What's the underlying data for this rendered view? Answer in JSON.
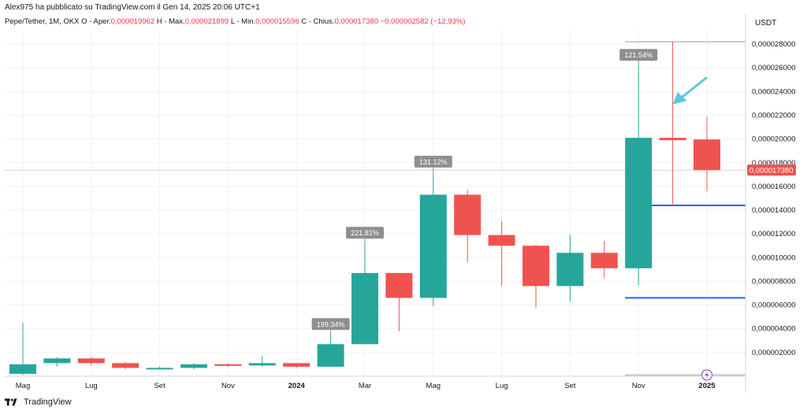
{
  "header": {
    "author_line": "Alex975 ha pubblicato su TradingView.com il Gen 14, 2025 20:06 UTC+1",
    "symbol": "Pepe/Tether, 1M, OKX",
    "open_label": "O - Aper.",
    "open_value": "0,000019962",
    "high_label": "H - Max.",
    "high_value": "0,000021899",
    "low_label": "L - Min.",
    "low_value": "0,000015596",
    "close_label": "C - Chius.",
    "close_value": "0,000017380",
    "change_value": "−0,000002582 (−12,93%)"
  },
  "footer": {
    "brand": "TradingView",
    "logo_icon": "tradingview-logo-icon"
  },
  "colors": {
    "up": "#26a69a",
    "down": "#ef5350",
    "level": "#2962ff",
    "arrow": "#5bc8e0",
    "label_bg": "#8f8f8f"
  },
  "chart_data": {
    "type": "candlestick",
    "currency_label": "USDT",
    "last_price_label": "0,000017380",
    "last_price": 1.738e-05,
    "ylim": [
      0,
      2.92e-05
    ],
    "y_ticks": [
      {
        "v": 2e-06,
        "label": "0,000002000"
      },
      {
        "v": 4e-06,
        "label": "0,000004000"
      },
      {
        "v": 6e-06,
        "label": "0,000006000"
      },
      {
        "v": 8e-06,
        "label": "0,000008000"
      },
      {
        "v": 1e-05,
        "label": "0,000010000"
      },
      {
        "v": 1.2e-05,
        "label": "0,000012000"
      },
      {
        "v": 1.4e-05,
        "label": "0,000014000"
      },
      {
        "v": 1.6e-05,
        "label": "0,000016000"
      },
      {
        "v": 1.8e-05,
        "label": "0,000018000"
      },
      {
        "v": 2e-05,
        "label": "0,000020000"
      },
      {
        "v": 2.2e-05,
        "label": "0,000022000"
      },
      {
        "v": 2.4e-05,
        "label": "0,000024000"
      },
      {
        "v": 2.6e-05,
        "label": "0,000026000"
      },
      {
        "v": 2.8e-05,
        "label": "0,000028000"
      }
    ],
    "x_labels": [
      {
        "i": 0,
        "label": "Mag",
        "bold": false
      },
      {
        "i": 2,
        "label": "Lug",
        "bold": false
      },
      {
        "i": 4,
        "label": "Set",
        "bold": false
      },
      {
        "i": 6,
        "label": "Nov",
        "bold": false
      },
      {
        "i": 8,
        "label": "2024",
        "bold": true
      },
      {
        "i": 10,
        "label": "Mar",
        "bold": false
      },
      {
        "i": 12,
        "label": "Mag",
        "bold": false
      },
      {
        "i": 14,
        "label": "Lug",
        "bold": false
      },
      {
        "i": 16,
        "label": "Set",
        "bold": false
      },
      {
        "i": 18,
        "label": "Nov",
        "bold": false
      },
      {
        "i": 20,
        "label": "2025",
        "bold": true
      }
    ],
    "candles": [
      {
        "o": 2e-07,
        "h": 4.5e-06,
        "l": 1e-07,
        "c": 1e-06
      },
      {
        "o": 1.1e-06,
        "h": 1.6e-06,
        "l": 8e-07,
        "c": 1.5e-06
      },
      {
        "o": 1.5e-06,
        "h": 1.6e-06,
        "l": 9e-07,
        "c": 1.1e-06
      },
      {
        "o": 1.1e-06,
        "h": 1.2e-06,
        "l": 6e-07,
        "c": 7e-07
      },
      {
        "o": 7e-07,
        "h": 8e-07,
        "l": 6e-07,
        "c": 7e-07
      },
      {
        "o": 7e-07,
        "h": 1.1e-06,
        "l": 6e-07,
        "c": 1e-06
      },
      {
        "o": 1e-06,
        "h": 1.1e-06,
        "l": 8e-07,
        "c": 9e-07
      },
      {
        "o": 9e-07,
        "h": 1.7e-06,
        "l": 8e-07,
        "c": 1.1e-06
      },
      {
        "o": 1.1e-06,
        "h": 1.1e-06,
        "l": 7e-07,
        "c": 8e-07
      },
      {
        "o": 8e-07,
        "h": 3.5e-06,
        "l": 8e-07,
        "c": 2.7e-06
      },
      {
        "o": 2.7e-06,
        "h": 1.12e-05,
        "l": 2.7e-06,
        "c": 8.7e-06
      },
      {
        "o": 8.7e-06,
        "h": 8.7e-06,
        "l": 3.8e-06,
        "c": 6.6e-06
      },
      {
        "o": 6.6e-06,
        "h": 1.72e-05,
        "l": 5.9e-06,
        "c": 1.53e-05
      },
      {
        "o": 1.53e-05,
        "h": 1.57e-05,
        "l": 9.6e-06,
        "c": 1.19e-05
      },
      {
        "o": 1.19e-05,
        "h": 1.31e-05,
        "l": 7.6e-06,
        "c": 1.1e-05
      },
      {
        "o": 1.1e-05,
        "h": 1.11e-05,
        "l": 5.8e-06,
        "c": 7.6e-06
      },
      {
        "o": 7.6e-06,
        "h": 1.19e-05,
        "l": 6.3e-06,
        "c": 1.04e-05
      },
      {
        "o": 1.04e-05,
        "h": 1.14e-05,
        "l": 8.3e-06,
        "c": 9.1e-06
      },
      {
        "o": 9.1e-06,
        "h": 2.62e-05,
        "l": 7.7e-06,
        "c": 2.01e-05
      },
      {
        "o": 2.01e-05,
        "h": 2.82e-05,
        "l": 1.44e-05,
        "c": 1.99e-05
      },
      {
        "o": 1.9962e-05,
        "h": 2.1899e-05,
        "l": 1.5596e-05,
        "c": 1.738e-05
      }
    ],
    "annotations": [
      {
        "i": 9,
        "label": "199.34%",
        "at": 3.5e-06
      },
      {
        "i": 10,
        "label": "221.81%",
        "at": 1.12e-05
      },
      {
        "i": 12,
        "label": "131.12%",
        "at": 1.72e-05
      },
      {
        "i": 18,
        "label": "121.54%",
        "at": 2.62e-05
      }
    ],
    "horizontal_levels": [
      {
        "from_i": 18,
        "value": 1.44e-05,
        "color": "#2962ff"
      },
      {
        "from_i": 18,
        "value": 6.6e-06,
        "color": "#2962ff"
      },
      {
        "from_i": 18,
        "value": 2.82e-05,
        "color": "#c8c8c8"
      },
      {
        "from_i": 18,
        "value": 1e-07,
        "color": "#c8c8c8"
      }
    ],
    "arrow": {
      "from_i": 20,
      "from_v": 2.52e-05,
      "to_i": 19,
      "to_v": 2.29e-05
    }
  }
}
